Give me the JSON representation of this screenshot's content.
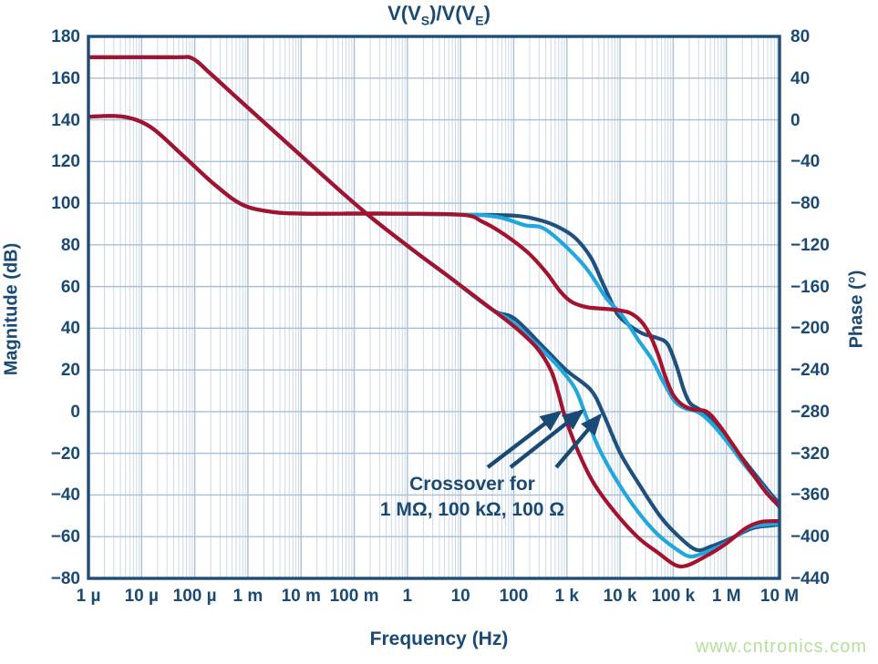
{
  "colors": {
    "text_navy": "#1a4a74",
    "border_navy": "#1d4d78",
    "grid_major": "#aabfd4",
    "grid_minor": "#ccd9e8",
    "series_1M": "#a4122d",
    "series_100k": "#22a7dd",
    "series_100": "#1e517f",
    "arrow": "#1a4a74",
    "watermark_green": "#b5e09b"
  },
  "title": {
    "parts": [
      "V(V",
      "S",
      ")/V(V",
      "E",
      ")"
    ]
  },
  "watermark": "www.cntronics.com",
  "chart_data": {
    "type": "line",
    "title": "V(V_S)/V(V_E)",
    "xlabel": "Frequency (Hz)",
    "ylabel_left": "Magnitude (dB)",
    "ylabel_right": "Phase (°)",
    "x_scale": "log",
    "x_range_log10": [
      -6,
      7
    ],
    "x_tick_labels": [
      "1 µ",
      "10 µ",
      "100 µ",
      "1 m",
      "10 m",
      "100 m",
      "1",
      "10",
      "100",
      "1 k",
      "10 k",
      "100 k",
      "1 M",
      "10 M"
    ],
    "y_left": {
      "label": "Magnitude (dB)",
      "min": -80,
      "max": 180,
      "step": 20,
      "tick_labels": [
        "180",
        "160",
        "140",
        "120",
        "100",
        "80",
        "60",
        "40",
        "20",
        "0",
        "−20",
        "−40",
        "−60",
        "−80"
      ]
    },
    "y_right": {
      "label": "Phase (°)",
      "min": -440,
      "max": 80,
      "step": 40,
      "tick_labels": [
        "80",
        "40",
        "0",
        "−40",
        "−80",
        "−120",
        "−160",
        "−200",
        "−240",
        "−280",
        "−320",
        "−360",
        "−400",
        "−440"
      ]
    },
    "grid": {
      "major": true,
      "log_minor_vertical": true
    },
    "legend": "none",
    "series": [
      {
        "name": "magnitude-1M",
        "resistor": "1 MΩ",
        "axis": "left",
        "unit": "dB",
        "color": "#a4122d",
        "points": [
          [
            -6,
            170
          ],
          [
            -4.4,
            170
          ],
          [
            -4.05,
            169.5
          ],
          [
            -3.72,
            162.5
          ],
          [
            -3.29,
            152.5
          ],
          [
            -1.88,
            120
          ],
          [
            -0.84,
            96.5
          ],
          [
            0.05,
            78.6
          ],
          [
            0.74,
            65.5
          ],
          [
            1.6,
            48.9
          ],
          [
            2.08,
            39.3
          ],
          [
            2.45,
            30.1
          ],
          [
            2.71,
            19.2
          ],
          [
            2.87,
            6.1
          ],
          [
            2.95,
            -1.3
          ],
          [
            3.17,
            -16.6
          ],
          [
            3.48,
            -33.3
          ],
          [
            3.87,
            -47.2
          ],
          [
            4.34,
            -60.4
          ],
          [
            4.72,
            -67.8
          ],
          [
            5.03,
            -73.5
          ],
          [
            5.25,
            -73.9
          ],
          [
            5.57,
            -70
          ],
          [
            5.97,
            -63.8
          ],
          [
            6.36,
            -56
          ],
          [
            6.65,
            -52.9
          ],
          [
            7,
            -52.5
          ]
        ]
      },
      {
        "name": "magnitude-100k",
        "resistor": "100 kΩ",
        "axis": "left",
        "unit": "dB",
        "color": "#22a7dd",
        "points": [
          [
            -6,
            170
          ],
          [
            -4.4,
            170
          ],
          [
            -4.05,
            169.5
          ],
          [
            -3.72,
            162.5
          ],
          [
            -3.29,
            152.5
          ],
          [
            -1.88,
            120
          ],
          [
            -0.84,
            96.5
          ],
          [
            0.05,
            78.6
          ],
          [
            0.74,
            65.5
          ],
          [
            1.6,
            48.9
          ],
          [
            1.94,
            43.7
          ],
          [
            2.37,
            33.6
          ],
          [
            2.8,
            22.7
          ],
          [
            3.14,
            11.7
          ],
          [
            3.33,
            0
          ],
          [
            3.57,
            -15.8
          ],
          [
            3.86,
            -29.8
          ],
          [
            4.25,
            -45.1
          ],
          [
            4.68,
            -58.2
          ],
          [
            5.11,
            -66.9
          ],
          [
            5.33,
            -69.5
          ],
          [
            5.57,
            -67.8
          ],
          [
            5.97,
            -63.4
          ],
          [
            6.4,
            -56
          ],
          [
            6.74,
            -54.2
          ],
          [
            7,
            -53.8
          ]
        ]
      },
      {
        "name": "magnitude-100",
        "resistor": "100 Ω",
        "axis": "left",
        "unit": "dB",
        "color": "#1e517f",
        "points": [
          [
            -6,
            170
          ],
          [
            -4.4,
            170
          ],
          [
            -4.05,
            169.5
          ],
          [
            -3.72,
            162.5
          ],
          [
            -3.29,
            152.5
          ],
          [
            -1.88,
            120
          ],
          [
            -0.84,
            96.5
          ],
          [
            0.05,
            78.6
          ],
          [
            0.74,
            65.5
          ],
          [
            1.6,
            48.9
          ],
          [
            2.02,
            44.5
          ],
          [
            2.59,
            30.1
          ],
          [
            3,
            19.6
          ],
          [
            3.45,
            10.4
          ],
          [
            3.69,
            -1.3
          ],
          [
            4,
            -19.7
          ],
          [
            4.34,
            -34.1
          ],
          [
            4.77,
            -50.7
          ],
          [
            5.16,
            -61.2
          ],
          [
            5.45,
            -66.4
          ],
          [
            5.71,
            -64.7
          ],
          [
            6.05,
            -61.2
          ],
          [
            6.48,
            -56
          ],
          [
            6.82,
            -54.7
          ],
          [
            7,
            -54.2
          ]
        ]
      },
      {
        "name": "phase-1M",
        "resistor": "1 MΩ",
        "axis": "right",
        "unit": "deg",
        "color": "#a4122d",
        "points": [
          [
            -6,
            3
          ],
          [
            -5.35,
            3
          ],
          [
            -4.83,
            -7
          ],
          [
            -4.23,
            -34
          ],
          [
            -3.63,
            -62
          ],
          [
            -3.12,
            -81
          ],
          [
            -2.6,
            -88
          ],
          [
            -2,
            -90
          ],
          [
            -0.5,
            -90
          ],
          [
            1,
            -91
          ],
          [
            1.42,
            -98
          ],
          [
            1.85,
            -111
          ],
          [
            2.28,
            -128
          ],
          [
            2.62,
            -147
          ],
          [
            2.88,
            -165
          ],
          [
            3.1,
            -175
          ],
          [
            3.4,
            -180
          ],
          [
            3.86,
            -182
          ],
          [
            4.17,
            -185
          ],
          [
            4.39,
            -193
          ],
          [
            4.56,
            -206
          ],
          [
            4.72,
            -226
          ],
          [
            4.85,
            -246
          ],
          [
            4.99,
            -263
          ],
          [
            5.16,
            -273
          ],
          [
            5.37,
            -278
          ],
          [
            5.63,
            -280
          ],
          [
            5.85,
            -292
          ],
          [
            6.14,
            -313
          ],
          [
            6.43,
            -335
          ],
          [
            6.74,
            -357
          ],
          [
            7,
            -371
          ]
        ]
      },
      {
        "name": "phase-100k",
        "resistor": "100 kΩ",
        "axis": "right",
        "unit": "deg",
        "color": "#22a7dd",
        "points": [
          [
            -6,
            3
          ],
          [
            -5.35,
            3
          ],
          [
            -4.83,
            -7
          ],
          [
            -4.23,
            -34
          ],
          [
            -3.63,
            -62
          ],
          [
            -3.12,
            -81
          ],
          [
            -2.6,
            -88
          ],
          [
            -2,
            -90
          ],
          [
            -0.5,
            -90
          ],
          [
            1,
            -91
          ],
          [
            1.68,
            -93
          ],
          [
            2.2,
            -101
          ],
          [
            2.62,
            -106
          ],
          [
            3.31,
            -139
          ],
          [
            3.74,
            -171
          ],
          [
            4.03,
            -187
          ],
          [
            4.34,
            -211
          ],
          [
            4.6,
            -230
          ],
          [
            4.82,
            -252
          ],
          [
            5.03,
            -270
          ],
          [
            5.23,
            -277
          ],
          [
            5.45,
            -280
          ],
          [
            5.68,
            -289
          ],
          [
            5.97,
            -306
          ],
          [
            6.31,
            -329
          ],
          [
            6.65,
            -350
          ],
          [
            7,
            -372
          ]
        ]
      },
      {
        "name": "phase-100",
        "resistor": "100 Ω",
        "axis": "right",
        "unit": "deg",
        "color": "#1e517f",
        "points": [
          [
            -6,
            3
          ],
          [
            -5.35,
            3
          ],
          [
            -4.83,
            -7
          ],
          [
            -4.23,
            -34
          ],
          [
            -3.63,
            -62
          ],
          [
            -3.12,
            -81
          ],
          [
            -2.6,
            -88
          ],
          [
            -2,
            -90
          ],
          [
            -0.5,
            -90
          ],
          [
            1,
            -91
          ],
          [
            2.02,
            -92
          ],
          [
            2.54,
            -97
          ],
          [
            2.88,
            -104
          ],
          [
            3.17,
            -114
          ],
          [
            3.45,
            -132
          ],
          [
            3.65,
            -154
          ],
          [
            3.82,
            -173
          ],
          [
            3.96,
            -187
          ],
          [
            4.17,
            -197
          ],
          [
            4.42,
            -205
          ],
          [
            4.68,
            -209
          ],
          [
            4.89,
            -215
          ],
          [
            5.06,
            -236
          ],
          [
            5.2,
            -259
          ],
          [
            5.32,
            -272
          ],
          [
            5.5,
            -278
          ],
          [
            5.71,
            -286
          ],
          [
            5.97,
            -302
          ],
          [
            6.26,
            -322
          ],
          [
            6.6,
            -344
          ],
          [
            6.87,
            -361
          ],
          [
            7,
            -368
          ]
        ]
      }
    ],
    "annotation": {
      "line1": "Crossover for",
      "line2": "1 MΩ, 100 kΩ, 100 Ω",
      "arrows": [
        {
          "from": [
            1.51,
            -26.7
          ],
          "to": [
            2.86,
            -0.4
          ]
        },
        {
          "from": [
            1.94,
            -26.7
          ],
          "to": [
            3.28,
            0.2
          ]
        },
        {
          "from": [
            2.8,
            -26.7
          ],
          "to": [
            3.62,
            -2.0
          ]
        }
      ]
    }
  }
}
